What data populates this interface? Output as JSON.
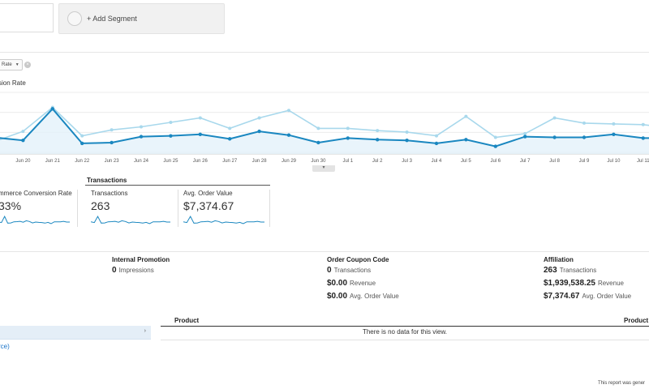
{
  "segments": {
    "add_label": "+ Add Segment"
  },
  "metric_selector": {
    "value": "Rate",
    "series_label": "sion Rate"
  },
  "chart_data": {
    "type": "line",
    "categories": [
      "",
      "Jun 20",
      "Jun 21",
      "Jun 22",
      "Jun 23",
      "Jun 24",
      "Jun 25",
      "Jun 26",
      "Jun 27",
      "Jun 28",
      "Jun 29",
      "Jun 30",
      "Jul 1",
      "Jul 2",
      "Jul 3",
      "Jul 4",
      "Jul 5",
      "Jul 6",
      "Jul 7",
      "Jul 8",
      "Jul 9",
      "Jul 10",
      "Jul 11",
      ""
    ],
    "series": [
      {
        "values": [
          2.2,
          2.9,
          4.5,
          2.6,
          3.0,
          3.2,
          3.5,
          3.8,
          3.1,
          3.8,
          4.3,
          3.1,
          3.1,
          2.95,
          2.85,
          2.6,
          3.9,
          2.5,
          2.75,
          3.8,
          3.45,
          3.4,
          3.35,
          3.1
        ],
        "color": "#a8d8ec"
      },
      {
        "values": [
          2.5,
          2.3,
          4.4,
          2.1,
          2.15,
          2.55,
          2.6,
          2.7,
          2.4,
          2.9,
          2.65,
          2.15,
          2.45,
          2.35,
          2.3,
          2.1,
          2.35,
          1.9,
          2.55,
          2.5,
          2.5,
          2.7,
          2.45,
          2.45
        ],
        "color": "#1a87c0"
      }
    ],
    "ylim": [
      1.5,
      5.5
    ],
    "grid": true,
    "legend": "none"
  },
  "summary": {
    "header": "Transactions",
    "cards": [
      {
        "label": "mmerce Conversion Rate",
        "value": "33%"
      },
      {
        "label": "Transactions",
        "value": "263"
      },
      {
        "label": "Avg. Order Value",
        "value": "$7,374.67"
      }
    ]
  },
  "marketing": {
    "internal_promotion": {
      "title": "Internal Promotion",
      "rows": [
        {
          "value": "0",
          "label": "Impressions"
        }
      ]
    },
    "order_coupon": {
      "title": "Order Coupon Code",
      "rows": [
        {
          "value": "0",
          "label": "Transactions"
        },
        {
          "value": "$0.00",
          "label": "Revenue"
        },
        {
          "value": "$0.00",
          "label": "Avg. Order Value"
        }
      ]
    },
    "affiliation": {
      "title": "Affiliation",
      "rows": [
        {
          "value": "263",
          "label": "Transactions"
        },
        {
          "value": "$1,939,538.25",
          "label": "Revenue"
        },
        {
          "value": "$7,374.67",
          "label": "Avg. Order Value"
        }
      ]
    }
  },
  "product_table": {
    "col_left": "Product",
    "col_right": "Product I",
    "no_data": "There is no data for this view."
  },
  "left_link": "rce)",
  "footer": "This report was gener"
}
